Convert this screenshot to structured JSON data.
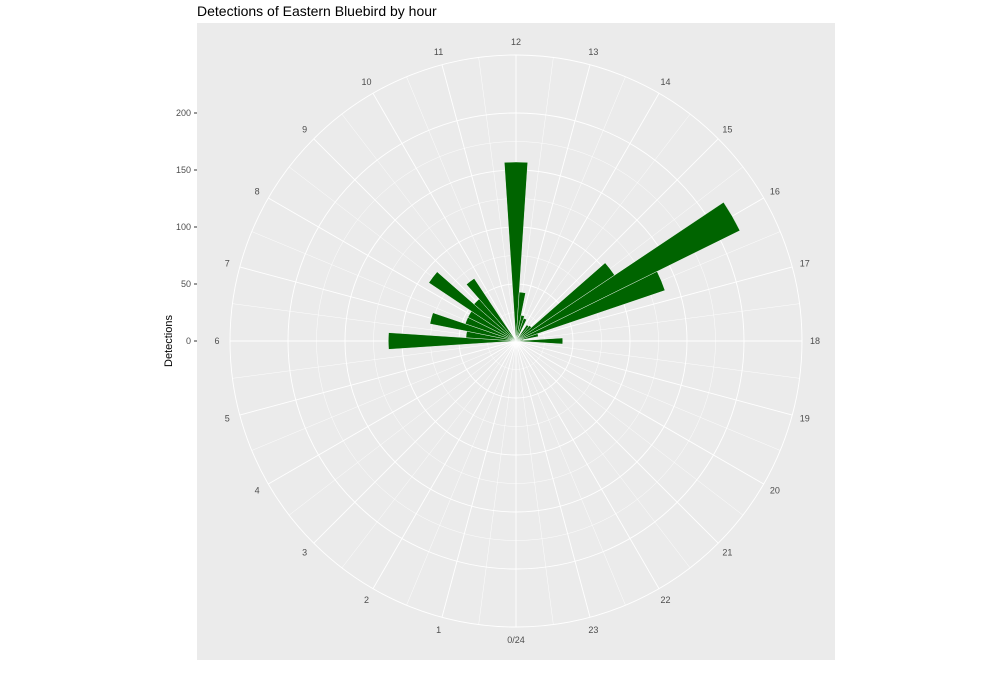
{
  "chart_data": {
    "type": "bar",
    "coord": "polar",
    "title": "Detections of Eastern Bluebird by hour",
    "xlabel": "",
    "ylabel": "Detections",
    "y_ticks": [
      "0",
      "50",
      "100",
      "150",
      "200"
    ],
    "x_tick_labels": [
      "0/24",
      "1",
      "2",
      "3",
      "4",
      "5",
      "6",
      "7",
      "8",
      "9",
      "10",
      "11",
      "12",
      "13",
      "14",
      "15",
      "16",
      "17",
      "18",
      "19",
      "20",
      "21",
      "22",
      "23"
    ],
    "categories": [
      5.5,
      6,
      6.5,
      7,
      7.5,
      8,
      8.5,
      9,
      9.5,
      10,
      10.5,
      11,
      11.5,
      12,
      12.5,
      13,
      13.5,
      14,
      14.5,
      15,
      15.5,
      16,
      16.5,
      17,
      17.5,
      18,
      18.5,
      19
    ],
    "values": [
      0,
      112,
      44,
      77,
      47,
      47,
      92,
      49,
      66,
      0,
      0,
      0,
      0,
      157,
      43,
      23,
      21,
      4,
      17,
      18,
      104,
      219,
      138,
      20,
      6,
      41,
      0,
      0
    ],
    "ylim": [
      0,
      200
    ],
    "bar_color": "#006400",
    "panel_color": "#EBEBEB",
    "grid_color": "#ffffff",
    "grid": true
  }
}
